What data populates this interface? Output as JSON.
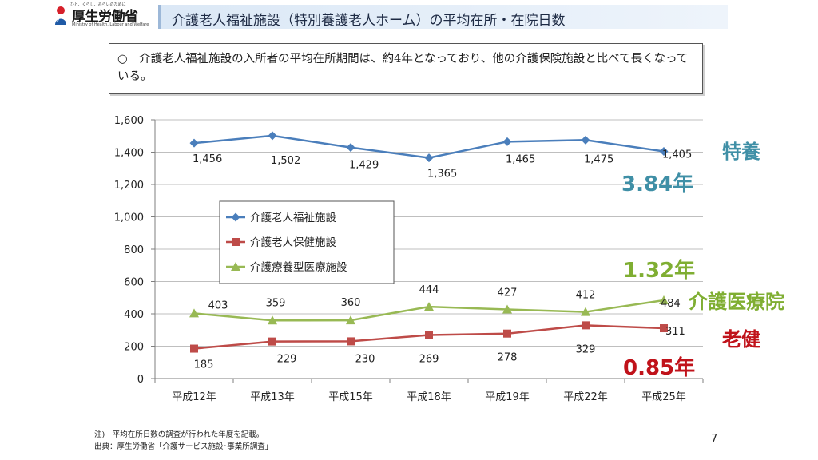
{
  "header": {
    "logo_name": "厚生労働省",
    "logo_tagline": "ひと、くらし、みらいのために",
    "logo_english": "Ministry of Health, Labour and Welfare",
    "title": "介護老人福祉施設（特別養護老人ホーム）の平均在所・在院日数"
  },
  "summary": "○　介護老人福祉施設の入所者の平均在所期間は、約4年となっており、他の介護保険施設と比べて長くなっている。",
  "chart_data": {
    "type": "line",
    "categories": [
      "平成12年",
      "平成13年",
      "平成15年",
      "平成18年",
      "平成19年",
      "平成22年",
      "平成25年"
    ],
    "y_ticks": [
      "0",
      "200",
      "400",
      "600",
      "800",
      "1,000",
      "1,200",
      "1,400",
      "1,600"
    ],
    "ylim": [
      0,
      1600
    ],
    "grid": true,
    "legend_position": "center-left",
    "series": [
      {
        "name": "介護老人福祉施設",
        "values": [
          1456,
          1502,
          1429,
          1365,
          1465,
          1475,
          1405
        ],
        "labels": [
          "1,456",
          "1,502",
          "1,429",
          "1,365",
          "1,465",
          "1,475",
          "1,405"
        ],
        "color": "#4a7ebb",
        "marker": "diamond"
      },
      {
        "name": "介護老人保健施設",
        "values": [
          185,
          229,
          230,
          269,
          278,
          329,
          311
        ],
        "labels": [
          "185",
          "229",
          "230",
          "269",
          "278",
          "329",
          "311"
        ],
        "color": "#be4b48",
        "marker": "square"
      },
      {
        "name": "介護療養型医療施設",
        "values": [
          403,
          359,
          360,
          444,
          427,
          412,
          484
        ],
        "labels": [
          "403",
          "359",
          "360",
          "444",
          "427",
          "412",
          "484"
        ],
        "color": "#98b954",
        "marker": "triangle"
      }
    ]
  },
  "side_labels": {
    "tokuyo_label": "特養",
    "tokuyo_years": "3.84年",
    "iryo_years": "1.32年",
    "iryo_label": "介護医療院",
    "roken_label": "老健",
    "roken_years": "0.85年"
  },
  "footnotes": {
    "note": "注)　平均在所日数の調査が行われた年度を記載。",
    "source": "出典：厚生労働省「介護サービス施設･事業所調査」"
  },
  "page_number": "7",
  "colors": {
    "tokuyo": "#3f8fa6",
    "iryo": "#7fae32",
    "roken": "#c0121a"
  }
}
